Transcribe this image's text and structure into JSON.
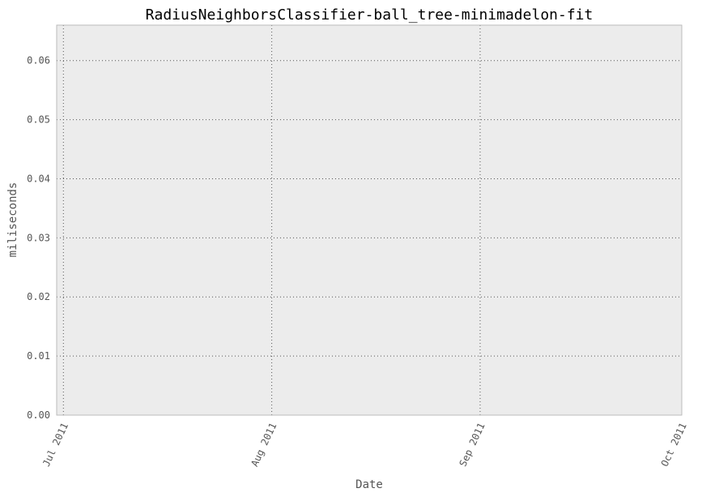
{
  "chart_data": {
    "type": "line",
    "title": "RadiusNeighborsClassifier-ball_tree-minimadelon-fit",
    "xlabel": "Date",
    "ylabel": "miliseconds",
    "x_ticks": [
      {
        "date": "2011-07-01",
        "label": "Jul 2011"
      },
      {
        "date": "2011-08-01",
        "label": "Aug 2011"
      },
      {
        "date": "2011-09-01",
        "label": "Sep 2011"
      },
      {
        "date": "2011-10-01",
        "label": "Oct 2011"
      }
    ],
    "y_ticks": [
      {
        "value": 0.0,
        "label": "0.00"
      },
      {
        "value": 0.01,
        "label": "0.01"
      },
      {
        "value": 0.02,
        "label": "0.02"
      },
      {
        "value": 0.03,
        "label": "0.03"
      },
      {
        "value": 0.04,
        "label": "0.04"
      },
      {
        "value": 0.05,
        "label": "0.05"
      },
      {
        "value": 0.06,
        "label": "0.06"
      }
    ],
    "xlim": [
      "2011-06-30",
      "2011-10-01"
    ],
    "ylim": [
      0,
      0.066
    ],
    "grid": true,
    "series": [
      {
        "x": [
          "2011-08-01",
          "2011-09-01"
        ],
        "y": [
          0.0,
          0.0
        ],
        "color": "#8888ff"
      }
    ],
    "colors": {
      "plot_background": "#ececec",
      "grid": "#555555",
      "frame": "#bbbbbb",
      "line": "#8888ff"
    }
  }
}
